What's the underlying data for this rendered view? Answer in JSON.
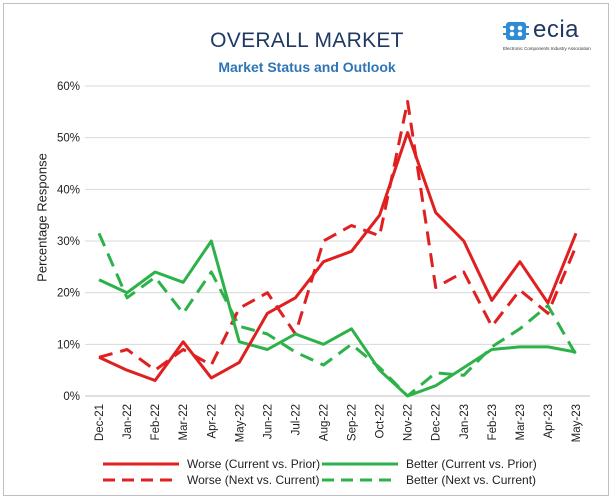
{
  "chart_data": {
    "type": "line",
    "title": "OVERALL MARKET",
    "subtitle": "Market Status and Outlook",
    "ylabel": "Percentage Response",
    "xlabel": "",
    "ylim": [
      0,
      60
    ],
    "yticks": [
      "0%",
      "10%",
      "20%",
      "30%",
      "40%",
      "50%",
      "60%"
    ],
    "grid": "horizontal",
    "legend_position": "bottom",
    "categories": [
      "Dec-21",
      "Jan-22",
      "Feb-22",
      "Mar-22",
      "Apr-22",
      "May-22",
      "Jun-22",
      "Jul-22",
      "Aug-22",
      "Sep-22",
      "Oct-22",
      "Nov-22",
      "Dec-22",
      "Jan-23",
      "Feb-23",
      "Mar-23",
      "Apr-23",
      "May-23"
    ],
    "series": [
      {
        "name": "Worse (Current vs. Prior)",
        "color": "#e02020",
        "dash": "solid",
        "values": [
          7.5,
          5,
          3,
          10.5,
          3.5,
          6.5,
          16,
          19,
          26,
          28,
          35,
          51,
          35.5,
          30,
          18.5,
          26,
          18,
          31.5
        ]
      },
      {
        "name": "Better (Current vs. Prior)",
        "color": "#2db24a",
        "dash": "solid",
        "values": [
          22.5,
          20,
          24,
          22,
          30,
          10.5,
          9,
          12,
          10,
          13,
          5,
          0,
          2,
          5.5,
          9,
          9.5,
          9.5,
          8.5
        ]
      },
      {
        "name": "Worse (Next vs. Current)",
        "color": "#e02020",
        "dash": "dashed",
        "values": [
          7.5,
          9,
          5,
          9,
          6,
          17,
          20,
          12,
          30,
          33,
          31,
          57,
          21,
          24,
          13.5,
          20.5,
          16,
          29
        ]
      },
      {
        "name": "Better (Next vs. Current)",
        "color": "#2db24a",
        "dash": "dashed",
        "values": [
          31.5,
          19,
          23,
          16,
          24,
          13.5,
          12,
          8.5,
          6,
          10,
          5.5,
          0,
          4.5,
          4,
          9.5,
          13,
          17.5,
          8
        ]
      }
    ]
  },
  "logo": {
    "name": "ecia",
    "tagline": "Electronic Components Industry Association"
  }
}
